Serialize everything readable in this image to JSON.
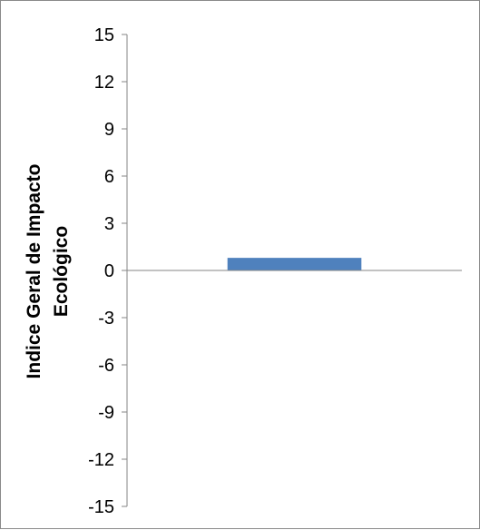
{
  "chart_data": {
    "type": "bar",
    "title": "",
    "xlabel": "",
    "ylabel_lines": [
      "Indice Geral de Impacto",
      "Ecológico"
    ],
    "categories": [
      ""
    ],
    "values": [
      0.8
    ],
    "ylim": [
      -15,
      15
    ],
    "yticks": [
      15,
      12,
      9,
      6,
      3,
      0,
      -3,
      -6,
      -9,
      -12,
      -15
    ],
    "grid": false,
    "legend": "none",
    "colors": {
      "bar": "#4f81bd",
      "axis": "#868686",
      "frame": "#8a8a8a"
    }
  }
}
